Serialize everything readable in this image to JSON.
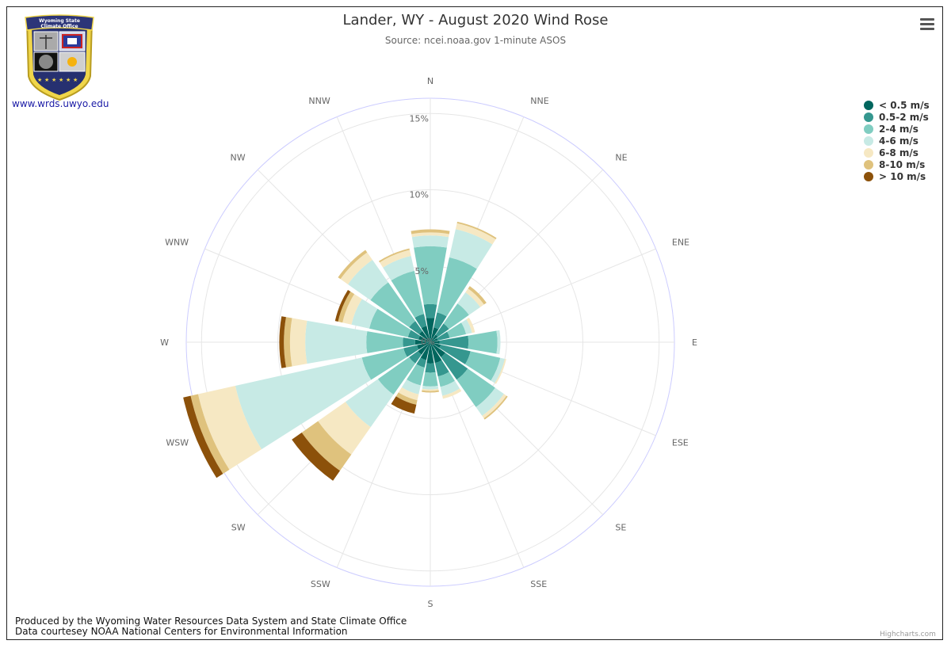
{
  "header": {
    "title": "Lander, WY - August 2020 Wind Rose",
    "subtitle": "Source: ncei.noaa.gov 1-minute ASOS"
  },
  "logo": {
    "org_line1": "Wyoming State",
    "org_line2": "Climate Office",
    "link": "www.wrds.uwyo.edu"
  },
  "footer": {
    "line1": "Produced by the Wyoming Water Resources Data System and State Climate Office",
    "line2": "Data courtesey NOAA National Centers for Environmental Information",
    "credit": "Highcharts.com"
  },
  "colors": {
    "grid": "#e6e6e6",
    "outer_ring": "#ccccff",
    "label": "#666666"
  },
  "chart_data": {
    "type": "windrose",
    "title": "Lander, WY - August 2020 Wind Rose",
    "subtitle": "Source: ncei.noaa.gov 1-minute ASOS",
    "units": "%",
    "radial_max": 16,
    "radial_ticks": [
      0,
      5,
      10,
      15
    ],
    "radial_tick_labels": [
      "0%",
      "5%",
      "10%",
      "15%"
    ],
    "directions": [
      "N",
      "NNE",
      "NE",
      "ENE",
      "E",
      "ESE",
      "SE",
      "SSE",
      "S",
      "SSW",
      "SW",
      "WSW",
      "W",
      "WNW",
      "NW",
      "NNW"
    ],
    "legend_position": "top-right",
    "series": [
      {
        "name": "< 0.5 m/s",
        "color": "#01665e",
        "values": [
          1.6,
          1.0,
          0.6,
          0.5,
          0.6,
          0.7,
          1.2,
          1.4,
          1.4,
          1.2,
          1.0,
          0.9,
          1.0,
          0.8,
          0.9,
          1.1
        ]
      },
      {
        "name": "0.5-2 m/s",
        "color": "#35978f",
        "values": [
          0.9,
          1.0,
          0.9,
          0.8,
          1.9,
          2.0,
          1.8,
          0.9,
          0.6,
          0.5,
          0.7,
          0.9,
          0.8,
          0.7,
          0.8,
          0.8
        ]
      },
      {
        "name": "2-4 m/s",
        "color": "#80cdc1",
        "values": [
          3.8,
          3.7,
          1.6,
          1.1,
          1.9,
          2.0,
          2.2,
          0.7,
          0.9,
          1.2,
          2.5,
          2.8,
          2.4,
          2.6,
          3.1,
          2.9
        ]
      },
      {
        "name": "4-6 m/s",
        "color": "#c7eae5",
        "values": [
          0.7,
          1.9,
          0.9,
          0.4,
          0.2,
          0.3,
          0.7,
          0.6,
          0.2,
          0.6,
          2.6,
          8.5,
          4.0,
          1.2,
          1.8,
          1.0
        ]
      },
      {
        "name": "6-8 m/s",
        "color": "#f6e8c3",
        "values": [
          0.2,
          0.4,
          0.3,
          0.2,
          0.0,
          0.1,
          0.2,
          0.2,
          0.1,
          0.4,
          2.2,
          2.5,
          1.0,
          0.6,
          0.6,
          0.4
        ]
      },
      {
        "name": "8-10 m/s",
        "color": "#dfc27d",
        "values": [
          0.2,
          0.1,
          0.2,
          0.0,
          0.0,
          0.0,
          0.1,
          0.0,
          0.1,
          0.3,
          1.3,
          0.5,
          0.4,
          0.3,
          0.2,
          0.1
        ]
      },
      {
        "name": "> 10 m/s",
        "color": "#8c510a",
        "values": [
          0.0,
          0.0,
          0.0,
          0.0,
          0.0,
          0.0,
          0.0,
          0.0,
          0.0,
          0.6,
          0.8,
          0.5,
          0.3,
          0.2,
          0.0,
          0.0
        ]
      }
    ]
  }
}
